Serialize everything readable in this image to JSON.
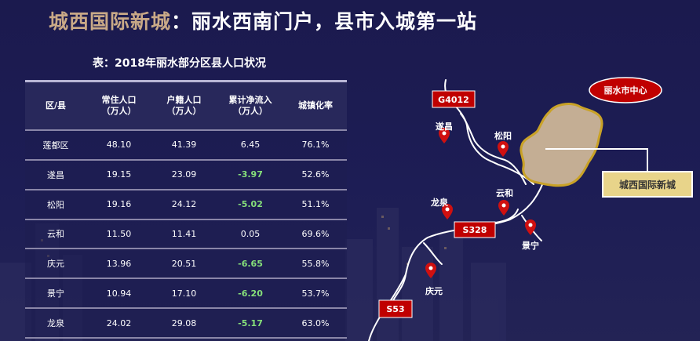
{
  "header": {
    "title_highlight": "城西国际新城",
    "title_rest": "：丽水西南门户，县市入城第一站"
  },
  "table": {
    "caption": "表：2018年丽水部分区县人口状况",
    "headers": [
      [
        "区/县"
      ],
      [
        "常住人口",
        "（万人）"
      ],
      [
        "户籍人口",
        "（万人）"
      ],
      [
        "累计净流入",
        "（万人）"
      ],
      [
        "城镇化率"
      ]
    ],
    "rows": [
      {
        "district": "莲都区",
        "resident": "48.10",
        "registered": "41.39",
        "net_inflow": "6.45",
        "urbanization": "76.1%",
        "negative": false
      },
      {
        "district": "遂昌",
        "resident": "19.15",
        "registered": "23.09",
        "net_inflow": "-3.97",
        "urbanization": "52.6%",
        "negative": true
      },
      {
        "district": "松阳",
        "resident": "19.16",
        "registered": "24.12",
        "net_inflow": "-5.02",
        "urbanization": "51.1%",
        "negative": true
      },
      {
        "district": "云和",
        "resident": "11.50",
        "registered": "11.41",
        "net_inflow": "0.05",
        "urbanization": "69.6%",
        "negative": false
      },
      {
        "district": "庆元",
        "resident": "13.96",
        "registered": "20.51",
        "net_inflow": "-6.65",
        "urbanization": "55.8%",
        "negative": true
      },
      {
        "district": "景宁",
        "resident": "10.94",
        "registered": "17.10",
        "net_inflow": "-6.20",
        "urbanization": "53.7%",
        "negative": true
      },
      {
        "district": "龙泉",
        "resident": "24.02",
        "registered": "29.08",
        "net_inflow": "-5.17",
        "urbanization": "63.0%",
        "negative": true
      }
    ]
  },
  "map": {
    "center_label": "丽水市中心",
    "new_city_label": "城西国际新城",
    "roads": {
      "g4012": "G4012",
      "s328": "S328",
      "s53": "S53"
    },
    "places": {
      "suichang": "遂昌",
      "songyang": "松阳",
      "yunhe": "云和",
      "longquan": "龙泉",
      "jingning": "景宁",
      "qingyuan": "庆元"
    },
    "colors": {
      "road_badge": "#c00000",
      "pin": "#d01010",
      "city_fill": "#c4ae94",
      "city_border": "#c9a227",
      "new_city_box": "#e8d48a"
    }
  }
}
